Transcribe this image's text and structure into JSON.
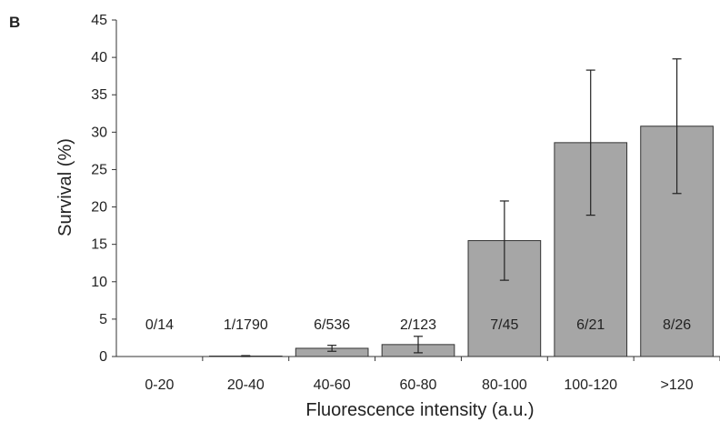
{
  "panel_label": "B",
  "chart_data": {
    "type": "bar",
    "title": "",
    "xlabel": "Fluorescence intensity (a.u.)",
    "ylabel": "Survival (%)",
    "ylim": [
      0,
      45
    ],
    "yticks": [
      0,
      5,
      10,
      15,
      20,
      25,
      30,
      35,
      40,
      45
    ],
    "grid": false,
    "categories": [
      "0-20",
      "20-40",
      "40-60",
      "60-80",
      "80-100",
      "100-120",
      ">120"
    ],
    "values": [
      0,
      0.06,
      1.1,
      1.6,
      15.5,
      28.6,
      30.8
    ],
    "error": [
      0,
      0.06,
      0.4,
      1.1,
      5.3,
      9.7,
      9.0
    ],
    "ratios": [
      "0/14",
      "1/1790",
      "6/536",
      "2/123",
      "7/45",
      "6/21",
      "8/26"
    ],
    "bar_color": "#a6a6a6",
    "bar_edge_color": "#333333"
  }
}
